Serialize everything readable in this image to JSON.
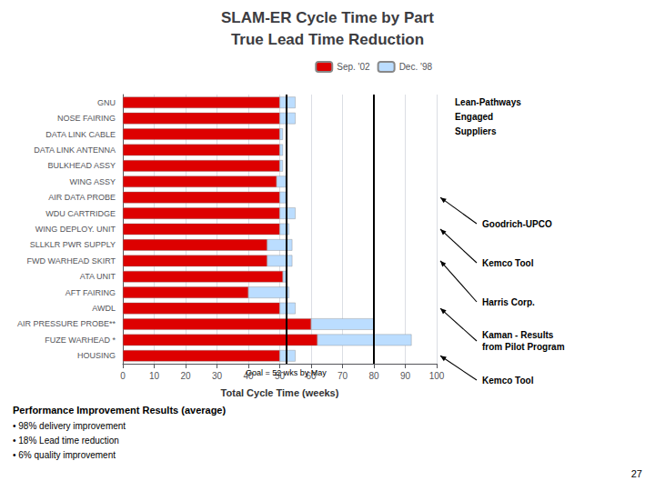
{
  "chart_data": {
    "type": "bar",
    "orientation": "horizontal",
    "stacked": true,
    "title": "SLAM-ER Cycle Time by Part",
    "subtitle": "True Lead Time Reduction",
    "categories": [
      "GNU",
      "NOSE FAIRING",
      "DATA LINK CABLE",
      "DATA LINK ANTENNA",
      "BULKHEAD ASSY",
      "WING ASSY",
      "AIR DATA PROBE",
      "WDU CARTRIDGE",
      "WING DEPLOY. UNIT",
      "SLLKLR PWR SUPPLY",
      "FWD WARHEAD SKIRT",
      "ATA UNIT",
      "AFT FAIRING",
      "AWDL",
      "AIR PRESSURE PROBE**",
      "FUZE WARHEAD *",
      "HOUSING"
    ],
    "series": [
      {
        "name": "Sep. '02",
        "color": "#dd0000",
        "values": [
          50,
          50,
          50,
          50,
          50,
          49,
          50,
          50,
          50,
          46,
          46,
          51,
          40,
          50,
          60,
          62,
          50
        ]
      },
      {
        "name": "Dec. '98",
        "color": "#bbddff",
        "values": [
          5,
          5,
          1,
          1,
          1,
          3,
          2,
          5,
          3,
          8,
          8,
          1,
          13,
          5,
          20,
          30,
          5
        ]
      }
    ],
    "xlabel": "Total Cycle Time (weeks)",
    "xlim": [
      0,
      100
    ],
    "xticks": [
      0,
      10,
      20,
      30,
      40,
      50,
      60,
      70,
      80,
      90,
      100
    ],
    "grid": true,
    "legend": "upper right",
    "vlines": [
      {
        "value": 52,
        "label": "Goal = 52 wks by May"
      },
      {
        "value": 80
      }
    ],
    "annotations": [
      {
        "text": "Goodrich-UPCO",
        "category": "AIR DATA PROBE"
      },
      {
        "text": "Kemco Tool",
        "category": "WING DEPLOY. UNIT"
      },
      {
        "text": "Harris Corp.",
        "category": "FWD WARHEAD SKIRT"
      },
      {
        "text": "Kaman - Results\nfrom Pilot Program",
        "category": "AWDL"
      },
      {
        "text": "Kemco Tool",
        "category": "HOUSING"
      }
    ],
    "side_note": [
      "Lean-Pathways",
      "Engaged",
      "Suppliers"
    ],
    "notes_title": "Performance Improvement Results (average)",
    "notes": [
      "• 98% delivery improvement",
      "• 18% Lead time reduction",
      "• 6% quality improvement"
    ],
    "page_number": "27"
  }
}
